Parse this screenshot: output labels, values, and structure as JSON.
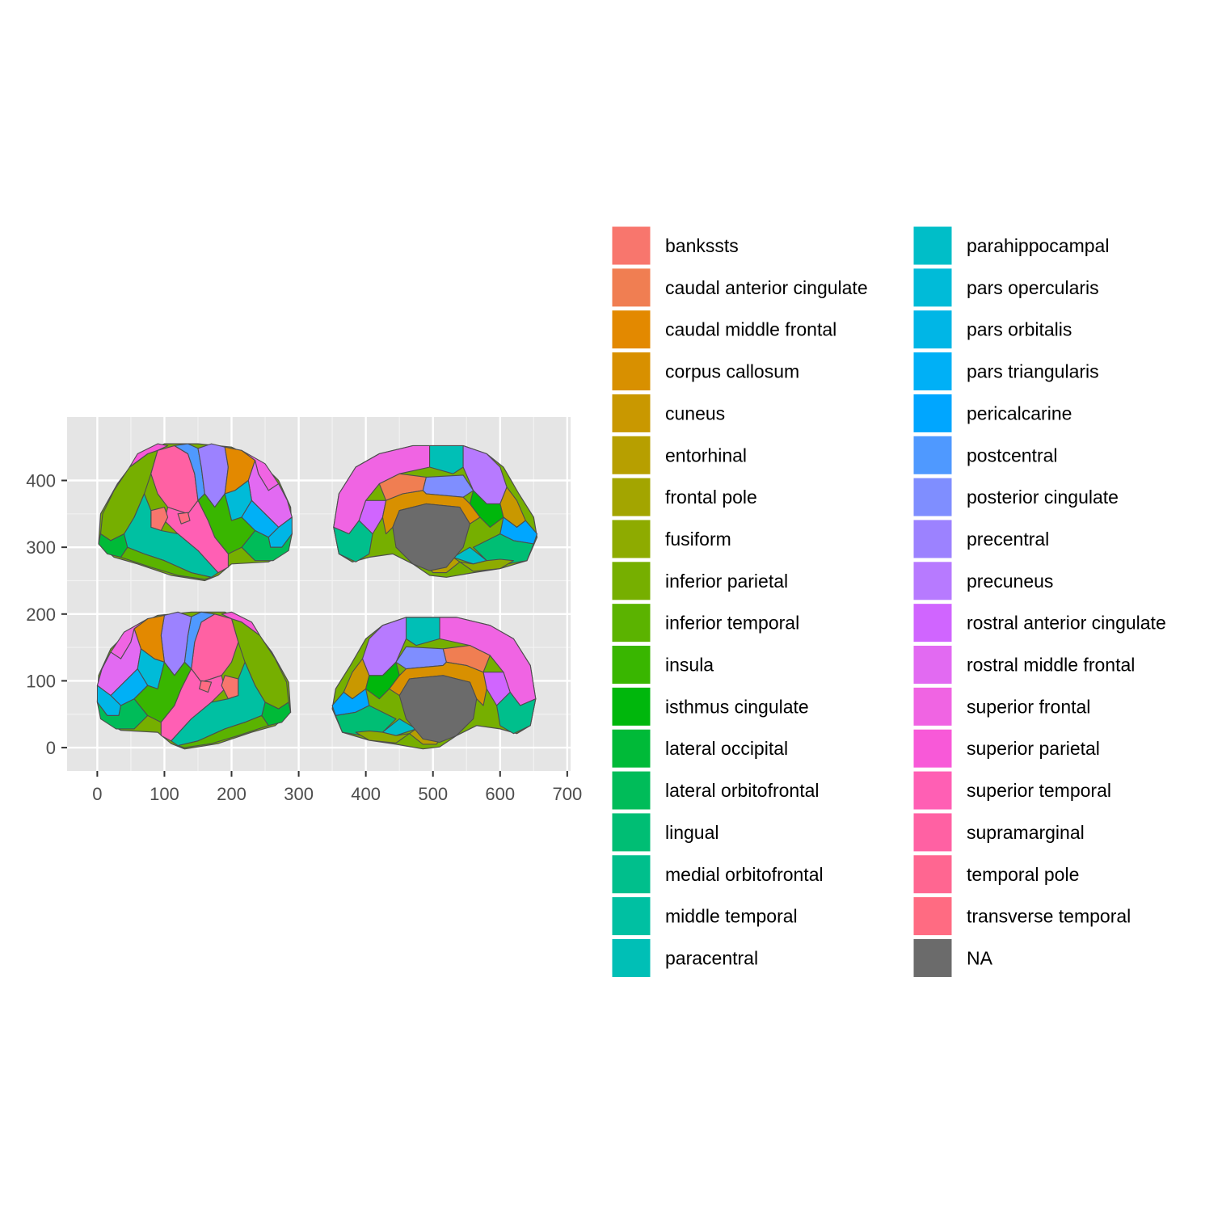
{
  "chart_data": {
    "type": "other",
    "subtype": "brain atlas map (ggseg, Desikan-Killiany), lateral and medial views of both hemispheres",
    "title": "",
    "xlabel": "",
    "ylabel": "",
    "xlim": [
      -45,
      705
    ],
    "ylim": [
      -35,
      495
    ],
    "x_ticks": [
      0,
      100,
      200,
      300,
      400,
      500,
      600,
      700
    ],
    "y_ticks": [
      0,
      100,
      200,
      300,
      400
    ],
    "grid": true,
    "panel_background": "#e5e5e5",
    "outline_color": "#4d4d4d",
    "na_color": "#6b6b6b",
    "legend_position": "right",
    "legend_columns": 2,
    "legend": [
      {
        "label": "bankssts",
        "color": "#F8766D"
      },
      {
        "label": "caudal anterior cingulate",
        "color": "#F07E52"
      },
      {
        "label": "caudal middle frontal",
        "color": "#E38900"
      },
      {
        "label": "corpus callosum",
        "color": "#D89000"
      },
      {
        "label": "cuneus",
        "color": "#C99800"
      },
      {
        "label": "entorhinal",
        "color": "#B79F00"
      },
      {
        "label": "frontal pole",
        "color": "#A3A500"
      },
      {
        "label": "fusiform",
        "color": "#8EAB00"
      },
      {
        "label": "inferior parietal",
        "color": "#76AF00"
      },
      {
        "label": "inferior temporal",
        "color": "#5BB300"
      },
      {
        "label": "insula",
        "color": "#39B600"
      },
      {
        "label": "isthmus cingulate",
        "color": "#00B70C"
      },
      {
        "label": "lateral occipital",
        "color": "#00BA38"
      },
      {
        "label": "lateral orbitofrontal",
        "color": "#00BC59"
      },
      {
        "label": "lingual",
        "color": "#00BE74"
      },
      {
        "label": "medial orbitofrontal",
        "color": "#00BF8C"
      },
      {
        "label": "middle temporal",
        "color": "#00C0A2"
      },
      {
        "label": "paracentral",
        "color": "#00BFB6"
      },
      {
        "label": "parahippocampal",
        "color": "#00BEC8"
      },
      {
        "label": "pars opercularis",
        "color": "#00BBD8"
      },
      {
        "label": "pars orbitalis",
        "color": "#00B6E6"
      },
      {
        "label": "pars triangularis",
        "color": "#00B0F6"
      },
      {
        "label": "pericalcarine",
        "color": "#00A6FF"
      },
      {
        "label": "postcentral",
        "color": "#4F99FF"
      },
      {
        "label": "posterior cingulate",
        "color": "#7F8EFF"
      },
      {
        "label": "precentral",
        "color": "#9C82FF"
      },
      {
        "label": "precuneus",
        "color": "#B77AFF"
      },
      {
        "label": "rostral anterior cingulate",
        "color": "#D065FF"
      },
      {
        "label": "rostral middle frontal",
        "color": "#E26AF2"
      },
      {
        "label": "superior frontal",
        "color": "#F064E3"
      },
      {
        "label": "superior parietal",
        "color": "#F859D8"
      },
      {
        "label": "superior temporal",
        "color": "#FF5FB4"
      },
      {
        "label": "supramarginal",
        "color": "#FF61A3"
      },
      {
        "label": "temporal pole",
        "color": "#FF6691"
      },
      {
        "label": "transverse temporal",
        "color": "#FF6B82"
      },
      {
        "label": "NA",
        "color": "#6B6B6B"
      }
    ],
    "views": [
      {
        "hemisphere": "left",
        "view": "lateral",
        "x_range": [
          0,
          290
        ],
        "y_range": [
          255,
          455
        ]
      },
      {
        "hemisphere": "left",
        "view": "medial",
        "x_range": [
          350,
          655
        ],
        "y_range": [
          255,
          452
        ]
      },
      {
        "hemisphere": "right",
        "view": "lateral",
        "x_range": [
          0,
          290
        ],
        "y_range": [
          3,
          205
        ]
      },
      {
        "hemisphere": "right",
        "view": "medial",
        "x_range": [
          350,
          655
        ],
        "y_range": [
          3,
          195
        ]
      }
    ]
  }
}
